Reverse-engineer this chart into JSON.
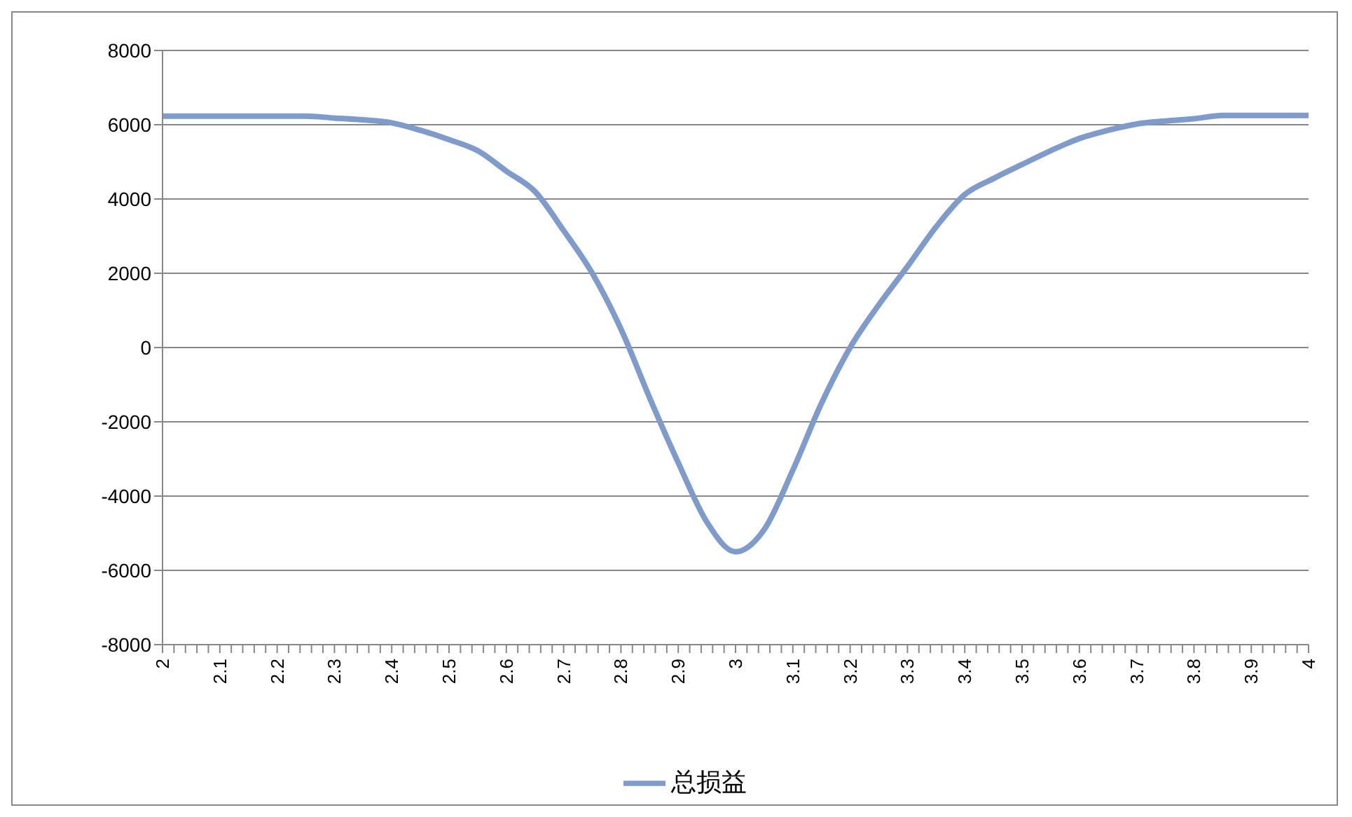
{
  "chart_data": {
    "type": "line",
    "x": [
      2,
      2.1,
      2.2,
      2.25,
      2.3,
      2.35,
      2.4,
      2.45,
      2.5,
      2.55,
      2.6,
      2.65,
      2.7,
      2.75,
      2.8,
      2.85,
      2.9,
      2.95,
      3,
      3.05,
      3.1,
      3.15,
      3.2,
      3.25,
      3.3,
      3.35,
      3.4,
      3.45,
      3.5,
      3.55,
      3.6,
      3.65,
      3.7,
      3.75,
      3.8,
      3.85,
      3.9,
      4
    ],
    "series": [
      {
        "name": "总损益",
        "color": "#7f9bcb",
        "values": [
          6230,
          6230,
          6230,
          6230,
          6180,
          6130,
          6050,
          5850,
          5600,
          5300,
          4750,
          4200,
          3150,
          2000,
          500,
          -1350,
          -3100,
          -4700,
          -5500,
          -4900,
          -3300,
          -1500,
          0,
          1150,
          2180,
          3250,
          4120,
          4550,
          4930,
          5300,
          5630,
          5850,
          6020,
          6100,
          6160,
          6250,
          6250,
          6250
        ]
      }
    ],
    "xlim": [
      2,
      4
    ],
    "xticks": [
      2,
      {
        "value": 2.02,
        "label": null
      },
      {
        "value": 2.04,
        "label": null
      },
      {
        "value": 2.06,
        "label": null
      },
      {
        "value": 2.08,
        "label": null
      },
      2.1,
      {
        "value": 2.12,
        "label": null
      },
      {
        "value": 2.14,
        "label": null
      },
      {
        "value": 2.16,
        "label": null
      },
      {
        "value": 2.18,
        "label": null
      },
      2.2,
      {
        "value": 2.22,
        "label": null
      },
      {
        "value": 2.24,
        "label": null
      },
      {
        "value": 2.26,
        "label": null
      },
      {
        "value": 2.28,
        "label": null
      },
      2.3,
      {
        "value": 2.32,
        "label": null
      },
      {
        "value": 2.34,
        "label": null
      },
      {
        "value": 2.36,
        "label": null
      },
      {
        "value": 2.38,
        "label": null
      },
      2.4,
      {
        "value": 2.42,
        "label": null
      },
      {
        "value": 2.44,
        "label": null
      },
      {
        "value": 2.46,
        "label": null
      },
      {
        "value": 2.48,
        "label": null
      },
      2.5,
      {
        "value": 2.52,
        "label": null
      },
      {
        "value": 2.54,
        "label": null
      },
      {
        "value": 2.56,
        "label": null
      },
      {
        "value": 2.58,
        "label": null
      },
      2.6,
      {
        "value": 2.62,
        "label": null
      },
      {
        "value": 2.64,
        "label": null
      },
      {
        "value": 2.66,
        "label": null
      },
      {
        "value": 2.68,
        "label": null
      },
      2.7,
      {
        "value": 2.72,
        "label": null
      },
      {
        "value": 2.74,
        "label": null
      },
      {
        "value": 2.76,
        "label": null
      },
      {
        "value": 2.78,
        "label": null
      },
      2.8,
      {
        "value": 2.82,
        "label": null
      },
      {
        "value": 2.84,
        "label": null
      },
      {
        "value": 2.86,
        "label": null
      },
      {
        "value": 2.88,
        "label": null
      },
      2.9,
      {
        "value": 2.92,
        "label": null
      },
      {
        "value": 2.94,
        "label": null
      },
      {
        "value": 2.96,
        "label": null
      },
      {
        "value": 2.98,
        "label": null
      },
      3,
      {
        "value": 3.02,
        "label": null
      },
      {
        "value": 3.04,
        "label": null
      },
      {
        "value": 3.06,
        "label": null
      },
      {
        "value": 3.08,
        "label": null
      },
      3.1,
      {
        "value": 3.12,
        "label": null
      },
      {
        "value": 3.14,
        "label": null
      },
      {
        "value": 3.16,
        "label": null
      },
      {
        "value": 3.18,
        "label": null
      },
      3.2,
      {
        "value": 3.22,
        "label": null
      },
      {
        "value": 3.24,
        "label": null
      },
      {
        "value": 3.26,
        "label": null
      },
      {
        "value": 3.28,
        "label": null
      },
      3.3,
      {
        "value": 3.32,
        "label": null
      },
      {
        "value": 3.34,
        "label": null
      },
      {
        "value": 3.36,
        "label": null
      },
      {
        "value": 3.38,
        "label": null
      },
      3.4,
      {
        "value": 3.42,
        "label": null
      },
      {
        "value": 3.44,
        "label": null
      },
      {
        "value": 3.46,
        "label": null
      },
      {
        "value": 3.48,
        "label": null
      },
      3.5,
      {
        "value": 3.52,
        "label": null
      },
      {
        "value": 3.54,
        "label": null
      },
      {
        "value": 3.56,
        "label": null
      },
      {
        "value": 3.58,
        "label": null
      },
      3.6,
      {
        "value": 3.62,
        "label": null
      },
      {
        "value": 3.64,
        "label": null
      },
      {
        "value": 3.66,
        "label": null
      },
      {
        "value": 3.68,
        "label": null
      },
      3.7,
      {
        "value": 3.72,
        "label": null
      },
      {
        "value": 3.74,
        "label": null
      },
      {
        "value": 3.76,
        "label": null
      },
      {
        "value": 3.78,
        "label": null
      },
      3.8,
      {
        "value": 3.82,
        "label": null
      },
      {
        "value": 3.84,
        "label": null
      },
      {
        "value": 3.86,
        "label": null
      },
      {
        "value": 3.88,
        "label": null
      },
      3.9,
      {
        "value": 3.92,
        "label": null
      },
      {
        "value": 3.94,
        "label": null
      },
      {
        "value": 3.96,
        "label": null
      },
      {
        "value": 3.98,
        "label": null
      },
      4
    ],
    "ylim": [
      -8000,
      8000
    ],
    "yticks": [
      -8000,
      -6000,
      -4000,
      -2000,
      0,
      2000,
      4000,
      6000,
      8000
    ],
    "grid": "y",
    "legend": "bottom",
    "marker": "none",
    "line_style": "solid"
  }
}
